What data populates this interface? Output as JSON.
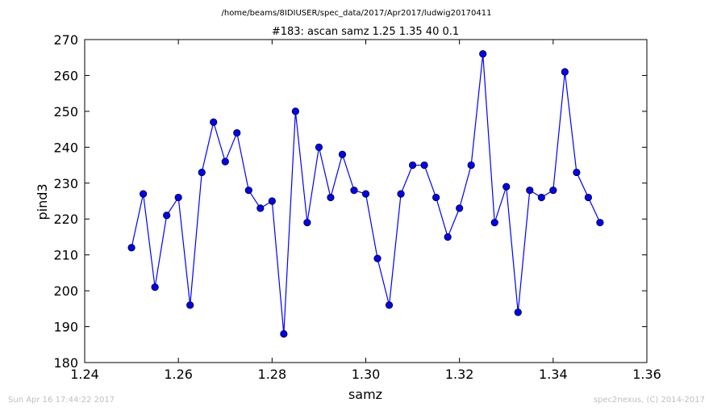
{
  "file_path": "/home/beams/8IDIUSER/spec_data/2017/Apr2017/ludwig20170411",
  "footer": {
    "timestamp": "Sun Apr 16 17:44:22 2017",
    "credit": "spec2nexus, (C) 2014-2017"
  },
  "colors": {
    "series": "#0000ff",
    "footer": "#bfbfbf",
    "axis": "#000000"
  },
  "chart_data": {
    "type": "line",
    "title": "#183: ascan  samz 1.25 1.35  40 0.1",
    "xlabel": "samz",
    "ylabel": "pind3",
    "xlim": [
      1.24,
      1.36
    ],
    "ylim": [
      180,
      270
    ],
    "xticks": [
      1.24,
      1.26,
      1.28,
      1.3,
      1.32,
      1.34,
      1.36
    ],
    "xtick_labels": [
      "1.24",
      "1.26",
      "1.28",
      "1.30",
      "1.32",
      "1.34",
      "1.36"
    ],
    "yticks": [
      180,
      190,
      200,
      210,
      220,
      230,
      240,
      250,
      260,
      270
    ],
    "ytick_labels": [
      "180",
      "190",
      "200",
      "210",
      "220",
      "230",
      "240",
      "250",
      "260",
      "270"
    ],
    "grid": false,
    "marker": "circle",
    "series": [
      {
        "x": [
          1.25,
          1.2525,
          1.255,
          1.2575,
          1.26,
          1.2625,
          1.265,
          1.2675,
          1.27,
          1.2725,
          1.275,
          1.2775,
          1.28,
          1.2825,
          1.285,
          1.2875,
          1.29,
          1.2925,
          1.295,
          1.2975,
          1.3,
          1.3025,
          1.305,
          1.3075,
          1.31,
          1.3125,
          1.315,
          1.3175,
          1.32,
          1.3225,
          1.325,
          1.3275,
          1.33,
          1.3325,
          1.335,
          1.3375,
          1.34,
          1.3425,
          1.345,
          1.3475,
          1.35
        ],
        "y": [
          212,
          227,
          201,
          221,
          226,
          196,
          233,
          247,
          236,
          244,
          228,
          223,
          225,
          188,
          250,
          219,
          240,
          226,
          238,
          228,
          227,
          209,
          196,
          227,
          235,
          235,
          226,
          215,
          223,
          235,
          266,
          219,
          229,
          194,
          228,
          226,
          228,
          261,
          233,
          226,
          219
        ]
      }
    ]
  }
}
